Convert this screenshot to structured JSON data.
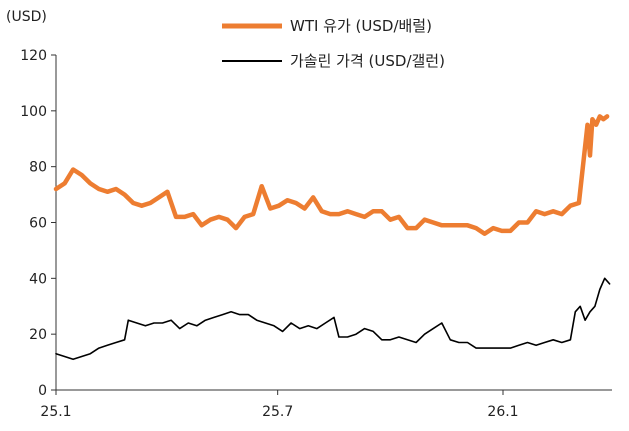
{
  "chart_data": {
    "type": "line",
    "title": "",
    "ylabel": "(USD)",
    "xlabel": "",
    "ylim": [
      0,
      120
    ],
    "yticks": [
      0,
      20,
      40,
      60,
      80,
      100,
      120
    ],
    "xlim": [
      "2025-01-01",
      "2026-03-31"
    ],
    "xticks": [
      {
        "label": "25.1",
        "date": "2025-01-01"
      },
      {
        "label": "25.7",
        "date": "2025-07-01"
      },
      {
        "label": "26.1",
        "date": "2026-01-01"
      }
    ],
    "grid": false,
    "legend": "top-center",
    "series": [
      {
        "name": "WTI 유가 (USD/배럴)",
        "color": "#ED7D31",
        "points": [
          [
            "2025-01-01",
            72
          ],
          [
            "2025-01-08",
            74
          ],
          [
            "2025-01-15",
            79
          ],
          [
            "2025-01-22",
            77
          ],
          [
            "2025-01-29",
            74
          ],
          [
            "2025-02-05",
            72
          ],
          [
            "2025-02-12",
            71
          ],
          [
            "2025-02-19",
            72
          ],
          [
            "2025-02-26",
            70
          ],
          [
            "2025-03-05",
            67
          ],
          [
            "2025-03-12",
            66
          ],
          [
            "2025-03-19",
            67
          ],
          [
            "2025-03-26",
            69
          ],
          [
            "2025-04-02",
            71
          ],
          [
            "2025-04-09",
            62
          ],
          [
            "2025-04-16",
            62
          ],
          [
            "2025-04-23",
            63
          ],
          [
            "2025-04-30",
            59
          ],
          [
            "2025-05-07",
            61
          ],
          [
            "2025-05-14",
            62
          ],
          [
            "2025-05-21",
            61
          ],
          [
            "2025-05-28",
            58
          ],
          [
            "2025-06-04",
            62
          ],
          [
            "2025-06-11",
            63
          ],
          [
            "2025-06-18",
            73
          ],
          [
            "2025-06-25",
            65
          ],
          [
            "2025-07-02",
            66
          ],
          [
            "2025-07-09",
            68
          ],
          [
            "2025-07-16",
            67
          ],
          [
            "2025-07-23",
            65
          ],
          [
            "2025-07-30",
            69
          ],
          [
            "2025-08-06",
            64
          ],
          [
            "2025-08-13",
            63
          ],
          [
            "2025-08-20",
            63
          ],
          [
            "2025-08-27",
            64
          ],
          [
            "2025-09-03",
            63
          ],
          [
            "2025-09-10",
            62
          ],
          [
            "2025-09-17",
            64
          ],
          [
            "2025-09-24",
            64
          ],
          [
            "2025-10-01",
            61
          ],
          [
            "2025-10-08",
            62
          ],
          [
            "2025-10-15",
            58
          ],
          [
            "2025-10-22",
            58
          ],
          [
            "2025-10-29",
            61
          ],
          [
            "2025-11-05",
            60
          ],
          [
            "2025-11-12",
            59
          ],
          [
            "2025-11-19",
            59
          ],
          [
            "2025-11-26",
            59
          ],
          [
            "2025-12-03",
            59
          ],
          [
            "2025-12-10",
            58
          ],
          [
            "2025-12-17",
            56
          ],
          [
            "2025-12-24",
            58
          ],
          [
            "2025-12-31",
            57
          ],
          [
            "2026-01-07",
            57
          ],
          [
            "2026-01-14",
            60
          ],
          [
            "2026-01-21",
            60
          ],
          [
            "2026-01-28",
            64
          ],
          [
            "2026-02-04",
            63
          ],
          [
            "2026-02-11",
            64
          ],
          [
            "2026-02-18",
            63
          ],
          [
            "2026-02-25",
            66
          ],
          [
            "2026-03-04",
            67
          ],
          [
            "2026-03-11",
            95
          ],
          [
            "2026-03-13",
            84
          ],
          [
            "2026-03-15",
            97
          ],
          [
            "2026-03-18",
            95
          ],
          [
            "2026-03-21",
            98
          ],
          [
            "2026-03-24",
            97
          ],
          [
            "2026-03-27",
            98
          ]
        ]
      },
      {
        "name": "가솔린 가격 (USD/갤런)",
        "color": "#000000",
        "points": [
          [
            "2025-01-01",
            13
          ],
          [
            "2025-01-08",
            12
          ],
          [
            "2025-01-15",
            11
          ],
          [
            "2025-01-22",
            12
          ],
          [
            "2025-01-29",
            13
          ],
          [
            "2025-02-05",
            15
          ],
          [
            "2025-02-12",
            16
          ],
          [
            "2025-02-19",
            17
          ],
          [
            "2025-02-26",
            18
          ],
          [
            "2025-03-01",
            25
          ],
          [
            "2025-03-08",
            24
          ],
          [
            "2025-03-15",
            23
          ],
          [
            "2025-03-22",
            24
          ],
          [
            "2025-03-29",
            24
          ],
          [
            "2025-04-05",
            25
          ],
          [
            "2025-04-12",
            22
          ],
          [
            "2025-04-19",
            24
          ],
          [
            "2025-04-26",
            23
          ],
          [
            "2025-05-03",
            25
          ],
          [
            "2025-05-10",
            26
          ],
          [
            "2025-05-17",
            27
          ],
          [
            "2025-05-24",
            28
          ],
          [
            "2025-05-31",
            27
          ],
          [
            "2025-06-07",
            27
          ],
          [
            "2025-06-14",
            25
          ],
          [
            "2025-06-21",
            24
          ],
          [
            "2025-06-28",
            23
          ],
          [
            "2025-07-05",
            21
          ],
          [
            "2025-07-12",
            24
          ],
          [
            "2025-07-19",
            22
          ],
          [
            "2025-07-26",
            23
          ],
          [
            "2025-08-02",
            22
          ],
          [
            "2025-08-09",
            24
          ],
          [
            "2025-08-16",
            26
          ],
          [
            "2025-08-20",
            19
          ],
          [
            "2025-08-27",
            19
          ],
          [
            "2025-09-03",
            20
          ],
          [
            "2025-09-10",
            22
          ],
          [
            "2025-09-17",
            21
          ],
          [
            "2025-09-24",
            18
          ],
          [
            "2025-10-01",
            18
          ],
          [
            "2025-10-08",
            19
          ],
          [
            "2025-10-15",
            18
          ],
          [
            "2025-10-22",
            17
          ],
          [
            "2025-10-29",
            20
          ],
          [
            "2025-11-05",
            22
          ],
          [
            "2025-11-12",
            24
          ],
          [
            "2025-11-19",
            18
          ],
          [
            "2025-11-26",
            17
          ],
          [
            "2025-12-03",
            17
          ],
          [
            "2025-12-10",
            15
          ],
          [
            "2025-12-17",
            15
          ],
          [
            "2025-12-24",
            15
          ],
          [
            "2025-12-31",
            15
          ],
          [
            "2026-01-07",
            15
          ],
          [
            "2026-01-14",
            16
          ],
          [
            "2026-01-21",
            17
          ],
          [
            "2026-01-28",
            16
          ],
          [
            "2026-02-04",
            17
          ],
          [
            "2026-02-11",
            18
          ],
          [
            "2026-02-18",
            17
          ],
          [
            "2026-02-25",
            18
          ],
          [
            "2026-03-01",
            28
          ],
          [
            "2026-03-05",
            30
          ],
          [
            "2026-03-09",
            25
          ],
          [
            "2026-03-13",
            28
          ],
          [
            "2026-03-17",
            30
          ],
          [
            "2026-03-21",
            36
          ],
          [
            "2026-03-25",
            40
          ],
          [
            "2026-03-29",
            38
          ]
        ]
      }
    ]
  }
}
